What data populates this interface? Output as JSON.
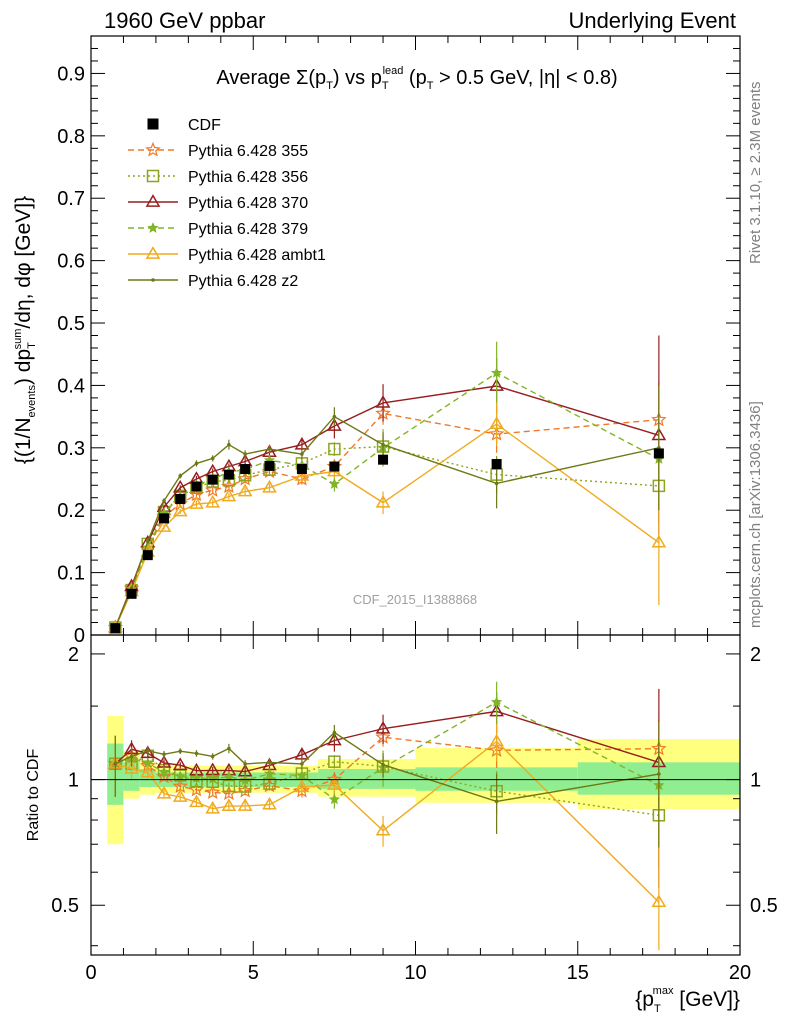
{
  "header": {
    "left": "1960 GeV ppbar",
    "right": "Underlying Event"
  },
  "side_labels": {
    "rivet": "Rivet 3.1.10, ≥ 2.3M events",
    "mcplots": "mcplots.cern.ch [arXiv:1306.3436]"
  },
  "watermark": "CDF_2015_I1388868",
  "chart_data": [
    {
      "type": "line",
      "title": "Average Σ(pT) vs pT^lead (pT > 0.5 GeV, |η| < 0.8)",
      "title_parts": {
        "a": "Average ",
        "b": "Σ(p",
        "c": "T",
        "d": ") vs p",
        "e": "T",
        "f": "lead",
        "g": " (p",
        "h": "T",
        "i": " > 0.5 GeV, |η| < 0.8)"
      },
      "xlabel": "{p_T^max [GeV]}",
      "xlabel_parts": {
        "a": "{p",
        "b": "T",
        "c": "max",
        "d": " [GeV]}"
      },
      "ylabel": "{(1/N_events) dp_T^sum/dη, dφ [GeV]}",
      "ylabel_parts": {
        "a": "{(1/N",
        "b": "events",
        "c": ") dp",
        "d": "T",
        "e": "sum",
        "f": "/dη, dφ [GeV]}"
      },
      "xlim": [
        0,
        20
      ],
      "ylim": [
        0,
        0.96
      ],
      "yticks": [
        "0",
        "0.1",
        "0.2",
        "0.3",
        "0.4",
        "0.5",
        "0.6",
        "0.7",
        "0.8",
        "0.9"
      ],
      "xticks": [
        "0",
        "5",
        "10",
        "15",
        "20"
      ],
      "legend_position": "top-left",
      "x": [
        0.75,
        1.25,
        1.75,
        2.25,
        2.75,
        3.25,
        3.75,
        4.25,
        4.75,
        5.5,
        6.5,
        7.5,
        9.0,
        12.5,
        17.5
      ],
      "series": [
        {
          "name": "CDF",
          "color": "#000000",
          "marker": "filled-square",
          "dash": "none",
          "values": [
            0.011,
            0.066,
            0.128,
            0.187,
            0.218,
            0.238,
            0.249,
            0.257,
            0.266,
            0.271,
            0.266,
            0.27,
            0.281,
            0.274,
            0.291
          ]
        },
        {
          "name": "Pythia 6.428 355",
          "color": "#f07828",
          "marker": "star",
          "dash": "6,4",
          "values": [
            0.012,
            0.075,
            0.138,
            0.19,
            0.21,
            0.225,
            0.232,
            0.238,
            0.25,
            0.262,
            0.25,
            0.27,
            0.355,
            0.322,
            0.345
          ],
          "errors": [
            0.002,
            0.004,
            0.004,
            0.004,
            0.004,
            0.005,
            0.005,
            0.005,
            0.006,
            0.007,
            0.009,
            0.011,
            0.018,
            0.03,
            0.06
          ]
        },
        {
          "name": "Pythia 6.428 356",
          "color": "#8ca51e",
          "marker": "open-square",
          "dash": "2,3",
          "values": [
            0.012,
            0.072,
            0.146,
            0.197,
            0.223,
            0.236,
            0.246,
            0.248,
            0.256,
            0.265,
            0.275,
            0.298,
            0.302,
            0.257,
            0.239
          ],
          "errors": [
            0.002,
            0.004,
            0.004,
            0.004,
            0.004,
            0.005,
            0.005,
            0.005,
            0.006,
            0.007,
            0.009,
            0.011,
            0.018,
            0.03,
            0.06
          ]
        },
        {
          "name": "Pythia 6.428 370",
          "color": "#961e1e",
          "marker": "open-triangle",
          "dash": "none",
          "values": [
            0.012,
            0.078,
            0.148,
            0.205,
            0.236,
            0.25,
            0.262,
            0.27,
            0.278,
            0.293,
            0.305,
            0.335,
            0.372,
            0.399,
            0.32
          ],
          "errors": [
            0.002,
            0.004,
            0.004,
            0.004,
            0.004,
            0.005,
            0.005,
            0.005,
            0.006,
            0.007,
            0.009,
            0.02,
            0.03,
            0.045,
            0.16
          ]
        },
        {
          "name": "Pythia 6.428 379",
          "color": "#82b428",
          "marker": "small-star",
          "dash": "6,4",
          "values": [
            0.012,
            0.074,
            0.14,
            0.195,
            0.222,
            0.24,
            0.25,
            0.261,
            0.265,
            0.28,
            0.272,
            0.242,
            0.3,
            0.42,
            0.282
          ],
          "errors": [
            0.002,
            0.004,
            0.004,
            0.004,
            0.004,
            0.005,
            0.005,
            0.005,
            0.006,
            0.007,
            0.009,
            0.012,
            0.03,
            0.05,
            0.08
          ]
        },
        {
          "name": "Pythia 6.428 ambt1",
          "color": "#f0aa1e",
          "marker": "open-triangle",
          "dash": "none",
          "values": [
            0.012,
            0.07,
            0.133,
            0.173,
            0.198,
            0.21,
            0.212,
            0.222,
            0.23,
            0.236,
            0.255,
            0.262,
            0.212,
            0.338,
            0.148
          ],
          "errors": [
            0.002,
            0.004,
            0.004,
            0.004,
            0.004,
            0.005,
            0.005,
            0.005,
            0.006,
            0.007,
            0.009,
            0.011,
            0.018,
            0.035,
            0.1
          ]
        },
        {
          "name": "Pythia 6.428 z2",
          "color": "#6e7814",
          "marker": "dot",
          "dash": "none",
          "values": [
            0.012,
            0.075,
            0.15,
            0.215,
            0.255,
            0.275,
            0.283,
            0.305,
            0.29,
            0.298,
            0.29,
            0.35,
            0.305,
            0.243,
            0.3
          ],
          "errors": [
            0.002,
            0.004,
            0.004,
            0.004,
            0.004,
            0.005,
            0.005,
            0.008,
            0.006,
            0.007,
            0.009,
            0.015,
            0.02,
            0.04,
            0.1
          ]
        }
      ]
    },
    {
      "type": "line",
      "ylabel": "Ratio to CDF",
      "xlim": [
        0,
        20
      ],
      "ylim": [
        0.38,
        2.22
      ],
      "yticks": [
        "0.5",
        "1",
        "2"
      ],
      "bands": {
        "stat_color": "#90ee90",
        "total_color": "#ffff80",
        "bins": [
          {
            "x0": 0.5,
            "x1": 1.0,
            "stat": [
              0.87,
              1.22
            ],
            "total": [
              0.7,
              1.42
            ]
          },
          {
            "x0": 1.0,
            "x1": 1.5,
            "stat": [
              0.94,
              1.1
            ],
            "total": [
              0.9,
              1.17
            ]
          },
          {
            "x0": 1.5,
            "x1": 2.0,
            "stat": [
              0.96,
              1.06
            ],
            "total": [
              0.92,
              1.1
            ]
          },
          {
            "x0": 2.0,
            "x1": 7.0,
            "stat": [
              0.96,
              1.04
            ],
            "total": [
              0.93,
              1.08
            ]
          },
          {
            "x0": 7.0,
            "x1": 10.0,
            "stat": [
              0.95,
              1.06
            ],
            "total": [
              0.91,
              1.12
            ]
          },
          {
            "x0": 10.0,
            "x1": 15.0,
            "stat": [
              0.94,
              1.07
            ],
            "total": [
              0.88,
              1.19
            ]
          },
          {
            "x0": 15.0,
            "x1": 20.0,
            "stat": [
              0.92,
              1.1
            ],
            "total": [
              0.85,
              1.25
            ]
          }
        ]
      }
    }
  ]
}
